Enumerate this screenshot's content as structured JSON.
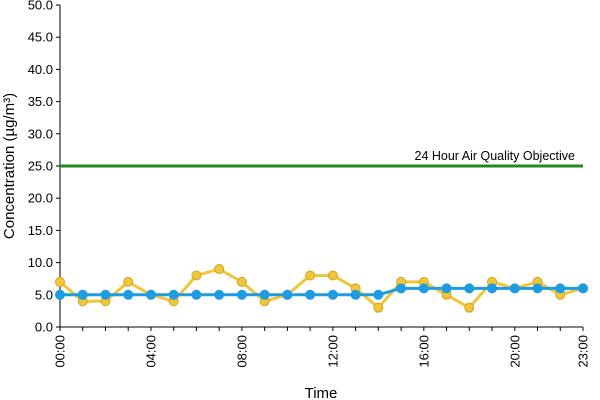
{
  "chart_data": {
    "type": "line",
    "title": "",
    "xlabel": "Time",
    "ylabel": "Concentration (µg/m³)",
    "ylim": [
      0,
      50
    ],
    "yticks": [
      "0.0",
      "5.0",
      "10.0",
      "15.0",
      "20.0",
      "25.0",
      "30.0",
      "35.0",
      "40.0",
      "45.0",
      "50.0"
    ],
    "hours": [
      0,
      1,
      2,
      3,
      4,
      5,
      6,
      7,
      8,
      9,
      10,
      11,
      12,
      13,
      14,
      15,
      16,
      17,
      18,
      19,
      20,
      21,
      22,
      23
    ],
    "xtick_labels": [
      {
        "hour": 0,
        "label": "00:00"
      },
      {
        "hour": 4,
        "label": "04:00"
      },
      {
        "hour": 8,
        "label": "08:00"
      },
      {
        "hour": 12,
        "label": "12:00"
      },
      {
        "hour": 16,
        "label": "16:00"
      },
      {
        "hour": 20,
        "label": "20:00"
      },
      {
        "hour": 23,
        "label": "23:00"
      }
    ],
    "grid": false,
    "series": [
      {
        "color": "#f0c63a",
        "edge_color": "#d4a51f",
        "values": [
          7,
          4,
          4,
          7,
          5,
          4,
          8,
          9,
          7,
          4,
          5,
          8,
          8,
          6,
          3,
          7,
          7,
          5,
          3,
          7,
          6,
          7,
          5,
          6
        ]
      },
      {
        "color": "#1f9be2",
        "edge_color": "#1f9be2",
        "values": [
          5,
          5,
          5,
          5,
          5,
          5,
          5,
          5,
          5,
          5,
          5,
          5,
          5,
          5,
          5,
          6,
          6,
          6,
          6,
          6,
          6,
          6,
          6,
          6
        ]
      }
    ],
    "objective": {
      "value": 25,
      "label": "24 Hour Air Quality Objective",
      "color": "#1f8a1f"
    }
  }
}
